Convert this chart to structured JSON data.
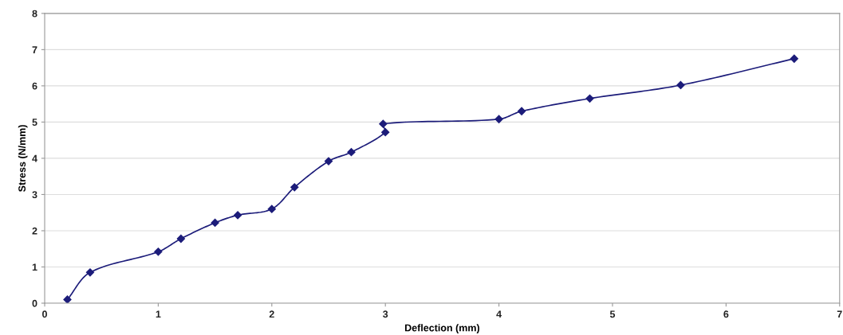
{
  "chart_data": {
    "type": "line",
    "xlabel": "Deflection (mm)",
    "ylabel": "Stress (N/mm)",
    "x": [
      0.2,
      0.4,
      1.0,
      1.2,
      1.5,
      1.7,
      2.0,
      2.2,
      2.5,
      2.7,
      3.0,
      2.98,
      4.0,
      4.2,
      4.8,
      5.6,
      6.6
    ],
    "series": [
      {
        "color": "#1c1c7a",
        "values": [
          0.1,
          0.85,
          1.42,
          1.78,
          2.22,
          2.43,
          2.6,
          3.2,
          3.92,
          4.17,
          4.72,
          4.95,
          5.08,
          5.3,
          5.65,
          6.02,
          6.75
        ]
      }
    ],
    "xlim": [
      0,
      7
    ],
    "xticks": [
      0,
      1,
      2,
      3,
      4,
      5,
      6,
      7
    ],
    "ylim": [
      0,
      8
    ],
    "yticks": [
      0,
      1,
      2,
      3,
      4,
      5,
      6,
      7,
      8
    ],
    "grid": "y",
    "marker": "diamond",
    "line_style": "solid",
    "legend": false
  }
}
